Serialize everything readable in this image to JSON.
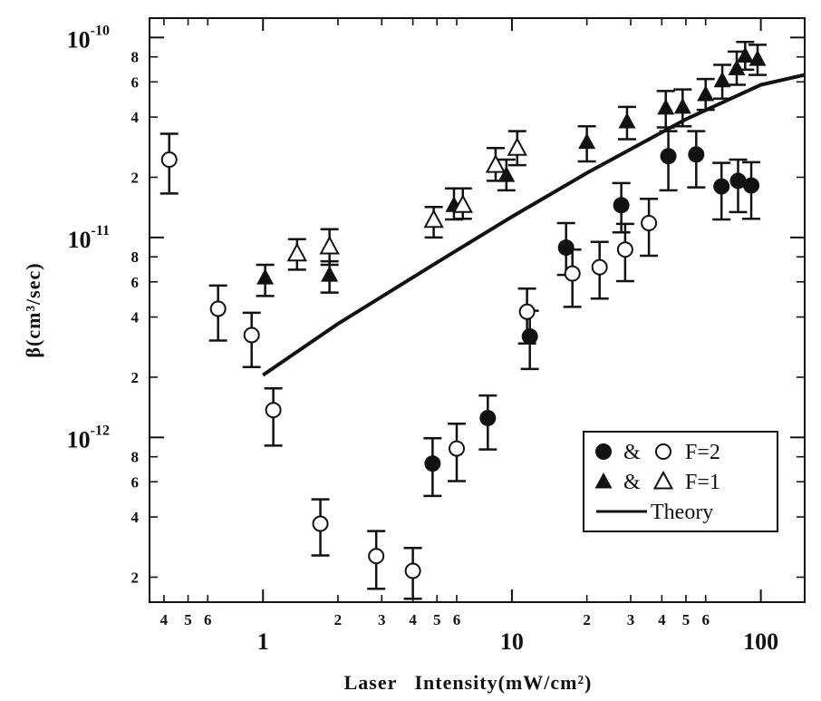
{
  "chart_data": {
    "type": "scatter",
    "title": "",
    "xlabel": "Laser   Intensity(mW/cm²)",
    "ylabel": "β(cm³/sec)",
    "x_scale": "log",
    "y_scale": "log",
    "xlim": [
      0.35,
      150
    ],
    "ylim": [
      1.5e-13,
      1.25e-10
    ],
    "x_major_ticks": [
      {
        "v": 1,
        "label": "1"
      },
      {
        "v": 10,
        "label": "10"
      },
      {
        "v": 100,
        "label": "100"
      }
    ],
    "x_minor_ticks": [
      {
        "v": 0.4,
        "label": "4"
      },
      {
        "v": 0.5,
        "label": "5"
      },
      {
        "v": 0.6,
        "label": "6"
      },
      {
        "v": 2,
        "label": "2"
      },
      {
        "v": 3,
        "label": "3"
      },
      {
        "v": 4,
        "label": "4"
      },
      {
        "v": 5,
        "label": "5"
      },
      {
        "v": 6,
        "label": "6"
      },
      {
        "v": 20,
        "label": "2"
      },
      {
        "v": 30,
        "label": "3"
      },
      {
        "v": 40,
        "label": "4"
      },
      {
        "v": 50,
        "label": "5"
      },
      {
        "v": 60,
        "label": "6"
      }
    ],
    "y_major_ticks": [
      {
        "v": 1e-12,
        "base": "10",
        "exp": "-12"
      },
      {
        "v": 1e-11,
        "base": "10",
        "exp": "-11"
      },
      {
        "v": 1e-10,
        "base": "10",
        "exp": "-10"
      }
    ],
    "y_minor_ticks": [
      {
        "v": 2e-13,
        "label": "2"
      },
      {
        "v": 4e-13,
        "label": "4"
      },
      {
        "v": 6e-13,
        "label": "6"
      },
      {
        "v": 8e-13,
        "label": "8"
      },
      {
        "v": 2e-12,
        "label": "2"
      },
      {
        "v": 4e-12,
        "label": "4"
      },
      {
        "v": 6e-12,
        "label": "6"
      },
      {
        "v": 8e-12,
        "label": "8"
      },
      {
        "v": 2e-11,
        "label": "2"
      },
      {
        "v": 4e-11,
        "label": "4"
      },
      {
        "v": 6e-11,
        "label": "6"
      },
      {
        "v": 8e-11,
        "label": "8"
      }
    ],
    "series": [
      {
        "marker": "filled-circle",
        "points": [
          {
            "x": 4.8,
            "y": 7.4e-13,
            "ylo": 5.1e-13,
            "yhi": 9.9e-13
          },
          {
            "x": 8.0,
            "y": 1.25e-12,
            "ylo": 8.7e-13,
            "yhi": 1.62e-12
          },
          {
            "x": 11.8,
            "y": 3.2e-12,
            "ylo": 2.2e-12,
            "yhi": 4.3e-12
          },
          {
            "x": 16.5,
            "y": 8.9e-12,
            "ylo": 6.5e-12,
            "yhi": 1.18e-11
          },
          {
            "x": 27.5,
            "y": 1.45e-11,
            "ylo": 1.06e-11,
            "yhi": 1.87e-11
          },
          {
            "x": 42.5,
            "y": 2.55e-11,
            "ylo": 1.72e-11,
            "yhi": 3.4e-11
          },
          {
            "x": 55.0,
            "y": 2.6e-11,
            "ylo": 1.78e-11,
            "yhi": 3.4e-11
          },
          {
            "x": 69.5,
            "y": 1.8e-11,
            "ylo": 1.23e-11,
            "yhi": 2.36e-11
          },
          {
            "x": 81.0,
            "y": 1.92e-11,
            "ylo": 1.34e-11,
            "yhi": 2.45e-11
          },
          {
            "x": 91.5,
            "y": 1.82e-11,
            "ylo": 1.24e-11,
            "yhi": 2.38e-11
          }
        ]
      },
      {
        "marker": "open-circle",
        "points": [
          {
            "x": 0.42,
            "y": 2.45e-11,
            "ylo": 1.66e-11,
            "yhi": 3.3e-11
          },
          {
            "x": 0.66,
            "y": 4.4e-12,
            "ylo": 3.05e-12,
            "yhi": 5.75e-12
          },
          {
            "x": 0.9,
            "y": 3.25e-12,
            "ylo": 2.25e-12,
            "yhi": 4.2e-12
          },
          {
            "x": 1.1,
            "y": 1.37e-12,
            "ylo": 9.1e-13,
            "yhi": 1.76e-12
          },
          {
            "x": 1.7,
            "y": 3.7e-13,
            "ylo": 2.57e-13,
            "yhi": 4.9e-13
          },
          {
            "x": 2.85,
            "y": 2.55e-13,
            "ylo": 1.75e-13,
            "yhi": 3.4e-13
          },
          {
            "x": 4.0,
            "y": 2.15e-13,
            "ylo": 1.56e-13,
            "yhi": 2.8e-13
          },
          {
            "x": 6.0,
            "y": 8.8e-13,
            "ylo": 6.05e-13,
            "yhi": 1.17e-12
          },
          {
            "x": 11.5,
            "y": 4.25e-12,
            "ylo": 2.95e-12,
            "yhi": 5.55e-12
          },
          {
            "x": 17.5,
            "y": 6.6e-12,
            "ylo": 4.5e-12,
            "yhi": 8.7e-12
          },
          {
            "x": 22.5,
            "y": 7.1e-12,
            "ylo": 4.95e-12,
            "yhi": 9.5e-12
          },
          {
            "x": 28.5,
            "y": 8.7e-12,
            "ylo": 6.05e-12,
            "yhi": 1.17e-11
          },
          {
            "x": 35.5,
            "y": 1.18e-11,
            "ylo": 8.1e-12,
            "yhi": 1.56e-11
          }
        ]
      },
      {
        "marker": "filled-triangle",
        "points": [
          {
            "x": 1.02,
            "y": 6.3e-12,
            "ylo": 5.1e-12,
            "yhi": 7.3e-12
          },
          {
            "x": 1.85,
            "y": 6.5e-12,
            "ylo": 5.3e-12,
            "yhi": 7.6e-12
          },
          {
            "x": 5.85,
            "y": 1.45e-11,
            "ylo": 1.23e-11,
            "yhi": 1.76e-11
          },
          {
            "x": 9.5,
            "y": 2.05e-11,
            "ylo": 1.72e-11,
            "yhi": 2.45e-11
          },
          {
            "x": 20.0,
            "y": 3e-11,
            "ylo": 2.4e-11,
            "yhi": 3.6e-11
          },
          {
            "x": 29.0,
            "y": 3.8e-11,
            "ylo": 3.1e-11,
            "yhi": 4.5e-11
          },
          {
            "x": 41.5,
            "y": 4.45e-11,
            "ylo": 3.55e-11,
            "yhi": 5.4e-11
          },
          {
            "x": 48.5,
            "y": 4.5e-11,
            "ylo": 3.6e-11,
            "yhi": 5.5e-11
          },
          {
            "x": 60.0,
            "y": 5.2e-11,
            "ylo": 4.35e-11,
            "yhi": 6.2e-11
          },
          {
            "x": 70.0,
            "y": 6.1e-11,
            "ylo": 4.95e-11,
            "yhi": 7.3e-11
          },
          {
            "x": 80.0,
            "y": 7e-11,
            "ylo": 5.8e-11,
            "yhi": 8.5e-11
          },
          {
            "x": 86.5,
            "y": 8.1e-11,
            "ylo": 6.9e-11,
            "yhi": 9.5e-11
          },
          {
            "x": 97.0,
            "y": 7.8e-11,
            "ylo": 6.5e-11,
            "yhi": 9.2e-11
          }
        ]
      },
      {
        "marker": "open-triangle",
        "points": [
          {
            "x": 1.37,
            "y": 8.3e-12,
            "ylo": 6.9e-12,
            "yhi": 9.8e-12
          },
          {
            "x": 1.85,
            "y": 9e-12,
            "ylo": 7.3e-12,
            "yhi": 1.1e-11
          },
          {
            "x": 4.85,
            "y": 1.22e-11,
            "ylo": 1e-11,
            "yhi": 1.42e-11
          },
          {
            "x": 6.35,
            "y": 1.45e-11,
            "ylo": 1.24e-11,
            "yhi": 1.76e-11
          },
          {
            "x": 8.6,
            "y": 2.3e-11,
            "ylo": 1.92e-11,
            "yhi": 2.8e-11
          },
          {
            "x": 10.5,
            "y": 2.8e-11,
            "ylo": 2.3e-11,
            "yhi": 3.4e-11
          }
        ]
      }
    ],
    "theory_line": {
      "label": "Theory",
      "x": [
        1.0,
        2.0,
        5.0,
        10.0,
        20.0,
        50.0,
        100.0,
        150.0
      ],
      "y": [
        2.05e-12,
        3.7e-12,
        7.5e-12,
        1.27e-11,
        2.1e-11,
        3.9e-11,
        5.8e-11,
        6.5e-11
      ]
    },
    "legend": {
      "position": "bottom-right",
      "entries": [
        {
          "sym1": "filled-circle",
          "joiner": "&",
          "sym2": "open-circle",
          "label": "F=2"
        },
        {
          "sym1": "filled-triangle",
          "joiner": "&",
          "sym2": "open-triangle",
          "label": "F=1"
        },
        {
          "sym1": "line",
          "label": "Theory"
        }
      ]
    }
  }
}
